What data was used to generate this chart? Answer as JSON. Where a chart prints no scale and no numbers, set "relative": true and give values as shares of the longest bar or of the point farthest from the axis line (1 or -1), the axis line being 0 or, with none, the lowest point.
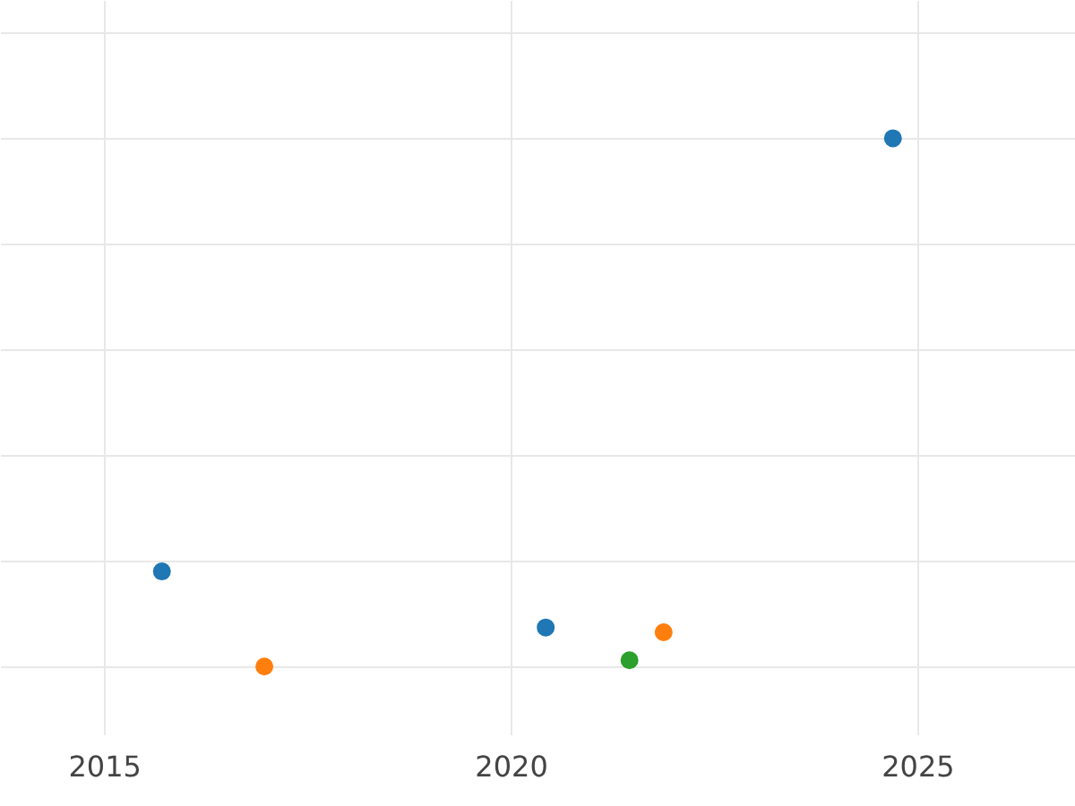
{
  "chart_data": {
    "type": "scatter",
    "relative": true,
    "marker": "circle",
    "grid": true,
    "xlim": [
      2013.72,
      2026.94
    ],
    "xticks": [
      2015,
      2020,
      2025
    ],
    "series": [
      {
        "color": "#1f77b4",
        "x": [
          2015.7,
          2020.42,
          2024.69
        ],
        "values": [
          0.18,
          0.074,
          1
        ]
      },
      {
        "color": "#ff7f0e",
        "x": [
          2016.96,
          2021.87
        ],
        "values": [
          0,
          0.065
        ]
      },
      {
        "color": "#2ca02c",
        "x": [
          2021.45
        ],
        "values": [
          0.012
        ]
      }
    ]
  }
}
